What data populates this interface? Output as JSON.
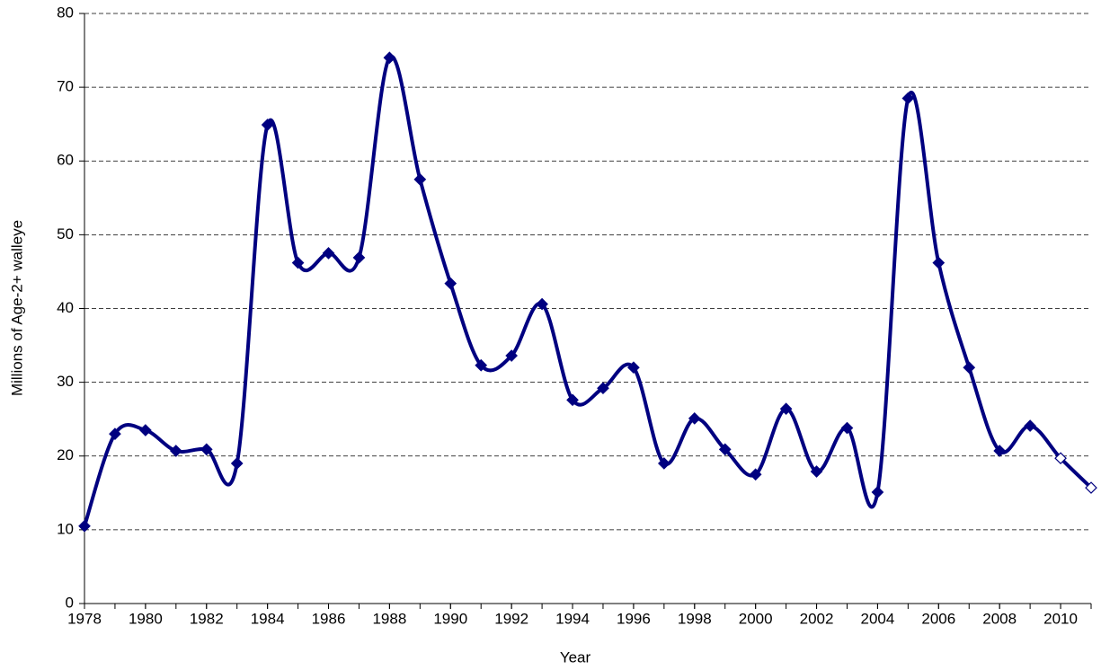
{
  "chart_data": {
    "type": "line",
    "x_label": "Year",
    "y_label": "Millions of Age-2+ walleye",
    "x": [
      1978,
      1979,
      1980,
      1981,
      1982,
      1983,
      1984,
      1985,
      1986,
      1987,
      1988,
      1989,
      1990,
      1991,
      1992,
      1993,
      1994,
      1995,
      1996,
      1997,
      1998,
      1999,
      2000,
      2001,
      2002,
      2003,
      2004,
      2005,
      2006,
      2007,
      2008,
      2009,
      2010,
      2011
    ],
    "values": [
      10.5,
      23.0,
      23.5,
      20.7,
      20.9,
      19.0,
      64.9,
      46.2,
      47.5,
      46.9,
      74.0,
      57.5,
      43.4,
      32.3,
      33.6,
      40.6,
      27.6,
      29.2,
      32.0,
      19.0,
      25.1,
      20.9,
      17.5,
      26.4,
      17.9,
      23.8,
      15.1,
      68.5,
      46.2,
      32.0,
      20.7,
      24.1,
      19.7,
      15.7
    ],
    "color": "#000080",
    "marker_fills": [
      "#000080",
      "#000080",
      "#000080",
      "#000080",
      "#000080",
      "#000080",
      "#000080",
      "#000080",
      "#000080",
      "#000080",
      "#000080",
      "#000080",
      "#000080",
      "#000080",
      "#000080",
      "#000080",
      "#000080",
      "#000080",
      "#000080",
      "#000080",
      "#000080",
      "#000080",
      "#000080",
      "#000080",
      "#000080",
      "#000080",
      "#000080",
      "#000080",
      "#000080",
      "#000080",
      "#000080",
      "#000080",
      "#ffffff",
      "#ffffff"
    ],
    "xlim": [
      1978,
      2011
    ],
    "xticks": [
      1978,
      1980,
      1982,
      1984,
      1986,
      1988,
      1990,
      1992,
      1994,
      1996,
      1998,
      2000,
      2002,
      2004,
      2006,
      2008,
      2010
    ],
    "ylim": [
      0,
      80
    ],
    "yticks": [
      0,
      10,
      20,
      30,
      40,
      50,
      60,
      70,
      80
    ],
    "grid": true
  }
}
